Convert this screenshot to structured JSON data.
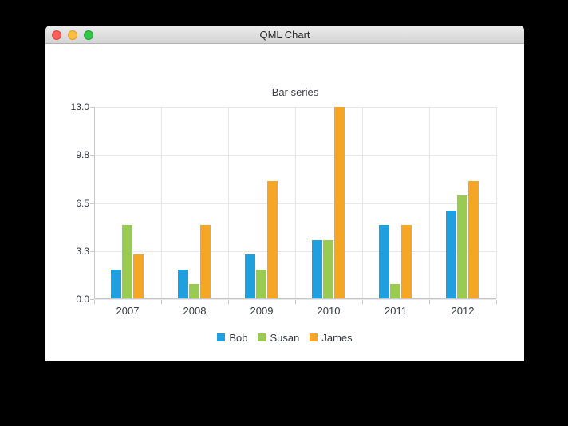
{
  "window": {
    "title": "QML Chart",
    "controls": {
      "close": "close",
      "minimize": "minimize",
      "zoom": "zoom"
    }
  },
  "chart_data": {
    "type": "bar",
    "title": "Bar series",
    "categories": [
      "2007",
      "2008",
      "2009",
      "2010",
      "2011",
      "2012"
    ],
    "series": [
      {
        "name": "Bob",
        "color": "#209fdf",
        "values": [
          2,
          2,
          3,
          4,
          5,
          6
        ]
      },
      {
        "name": "Susan",
        "color": "#99ca53",
        "values": [
          5,
          1,
          2,
          4,
          1,
          7
        ]
      },
      {
        "name": "James",
        "color": "#f6a625",
        "values": [
          3,
          5,
          8,
          13,
          5,
          8
        ]
      }
    ],
    "y_tick_labels": [
      "13.0",
      "9.8",
      "6.5",
      "3.3",
      "0.0"
    ],
    "ylim": [
      0,
      13
    ],
    "xlabel": "",
    "ylabel": "",
    "grid": true,
    "legend_position": "bottom"
  },
  "colors": {
    "grid": "#e8e8e8",
    "axis": "#c6c6c8",
    "text": "#35383e",
    "window_bg": "#ffffff",
    "titlebar_top": "#ececec",
    "titlebar_bottom": "#d4d4d4"
  }
}
